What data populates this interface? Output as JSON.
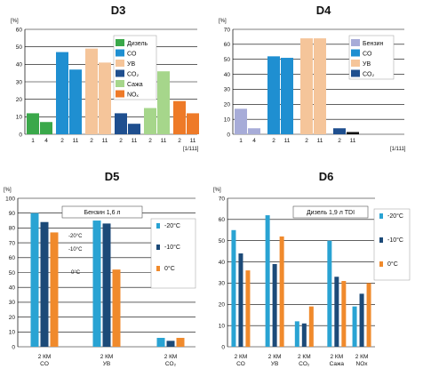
{
  "colors": {
    "green": "#3aa84a",
    "light_green": "#a6d68b",
    "blue": "#1f8fd1",
    "peach": "#f5c59a",
    "navy": "#1f4f8f",
    "orange": "#ee7a28",
    "lavender": "#a7acd8",
    "black": "#111111",
    "cyan": "#29a3d3",
    "dark_navy": "#1c4a78",
    "bright_orange": "#f08a2c"
  },
  "chart_data": [
    {
      "id": "d3",
      "type": "bar",
      "title": "D3",
      "unit": "[%]",
      "x_unit": "[1/111]",
      "ylim": [
        0,
        60
      ],
      "yticks": [
        0,
        10,
        20,
        30,
        40,
        50,
        60
      ],
      "grid": true,
      "legend": {
        "placement": "right-inside",
        "items": [
          {
            "label": "Дизель",
            "color": "green"
          },
          {
            "label": "CO",
            "color": "blue"
          },
          {
            "label": "УВ",
            "color": "peach"
          },
          {
            "label": "CO₂",
            "color": "navy"
          },
          {
            "label": "Сажа",
            "color": "light_green"
          },
          {
            "label": "NOₓ",
            "color": "orange"
          }
        ]
      },
      "bars": [
        {
          "x_label": "1",
          "value": 12,
          "color": "green"
        },
        {
          "x_label": "4",
          "value": 7,
          "color": "green"
        },
        {
          "x_label": "2",
          "value": 47,
          "color": "blue"
        },
        {
          "x_label": "11",
          "value": 37,
          "color": "blue"
        },
        {
          "x_label": "2",
          "value": 49,
          "color": "peach"
        },
        {
          "x_label": "11",
          "value": 41,
          "color": "peach"
        },
        {
          "x_label": "2",
          "value": 12,
          "color": "navy"
        },
        {
          "x_label": "11",
          "value": 6,
          "color": "navy"
        },
        {
          "x_label": "2",
          "value": 15,
          "color": "light_green"
        },
        {
          "x_label": "11",
          "value": 36,
          "color": "light_green"
        },
        {
          "x_label": "2",
          "value": 19,
          "color": "orange"
        },
        {
          "x_label": "11",
          "value": 12,
          "color": "orange"
        }
      ]
    },
    {
      "id": "d4",
      "type": "bar",
      "title": "D4",
      "unit": "[%]",
      "x_unit": "[1/111]",
      "ylim": [
        0,
        70
      ],
      "yticks": [
        0,
        10,
        20,
        30,
        40,
        50,
        60,
        70
      ],
      "grid": true,
      "legend": {
        "placement": "right-inside",
        "items": [
          {
            "label": "Бензин",
            "color": "lavender"
          },
          {
            "label": "CO",
            "color": "blue"
          },
          {
            "label": "УВ",
            "color": "peach"
          },
          {
            "label": "CO₂",
            "color": "navy"
          }
        ]
      },
      "bars": [
        {
          "x_label": "1",
          "value": 17,
          "color": "lavender"
        },
        {
          "x_label": "4",
          "value": 4,
          "color": "lavender"
        },
        {
          "x_label": "2",
          "value": 52,
          "color": "blue"
        },
        {
          "x_label": "11",
          "value": 51,
          "color": "blue"
        },
        {
          "x_label": "2",
          "value": 64,
          "color": "peach"
        },
        {
          "x_label": "11",
          "value": 64,
          "color": "peach"
        },
        {
          "x_label": "2",
          "value": 4,
          "color": "navy"
        },
        {
          "x_label": "11",
          "value": 1.5,
          "color": "black"
        }
      ]
    },
    {
      "id": "d5",
      "type": "bar",
      "title": "D5",
      "unit": "[%]",
      "ylim": [
        0,
        100
      ],
      "yticks": [
        0,
        10,
        20,
        30,
        40,
        50,
        60,
        70,
        80,
        90,
        100
      ],
      "grid": true,
      "annotation": "Бензин 1,6 л",
      "legend": {
        "placement": "right-outside",
        "items": [
          {
            "label": "-20°C",
            "color": "cyan"
          },
          {
            "label": "-10°C",
            "color": "dark_navy"
          },
          {
            "label": "0°C",
            "color": "bright_orange"
          }
        ]
      },
      "inline_labels": [
        "-20°C",
        "-10°C",
        "0°C"
      ],
      "categories": [
        {
          "label": "2 КМ",
          "sublabel": "CO",
          "values": [
            90,
            84,
            77
          ]
        },
        {
          "label": "2 КМ",
          "sublabel": "УВ",
          "values": [
            85,
            83,
            52
          ]
        },
        {
          "label": "2 КМ",
          "sublabel": "CO₂",
          "values": [
            6,
            4,
            6
          ]
        }
      ],
      "series_colors": [
        "cyan",
        "dark_navy",
        "bright_orange"
      ]
    },
    {
      "id": "d6",
      "type": "bar",
      "title": "D6",
      "unit": "[%]",
      "ylim": [
        0,
        70
      ],
      "yticks": [
        0,
        10,
        20,
        30,
        40,
        50,
        60,
        70
      ],
      "grid": true,
      "annotation": "Дизель 1,9 л TDI",
      "legend": {
        "placement": "right-outside",
        "items": [
          {
            "label": "-20°C",
            "color": "cyan"
          },
          {
            "label": "-10°C",
            "color": "dark_navy"
          },
          {
            "label": "0°C",
            "color": "bright_orange"
          }
        ]
      },
      "categories": [
        {
          "label": "2 КМ",
          "sublabel": "CO",
          "values": [
            55,
            44,
            36
          ]
        },
        {
          "label": "2 КМ",
          "sublabel": "УВ",
          "values": [
            62,
            39,
            52
          ]
        },
        {
          "label": "2 КМ",
          "sublabel": "CO₂",
          "values": [
            12,
            11,
            19
          ]
        },
        {
          "label": "2 КМ",
          "sublabel": "Сажа",
          "values": [
            50,
            33,
            31
          ]
        },
        {
          "label": "2 КМ",
          "sublabel": "NOx",
          "values": [
            19,
            25,
            30
          ]
        }
      ],
      "series_colors": [
        "cyan",
        "dark_navy",
        "bright_orange"
      ]
    }
  ]
}
